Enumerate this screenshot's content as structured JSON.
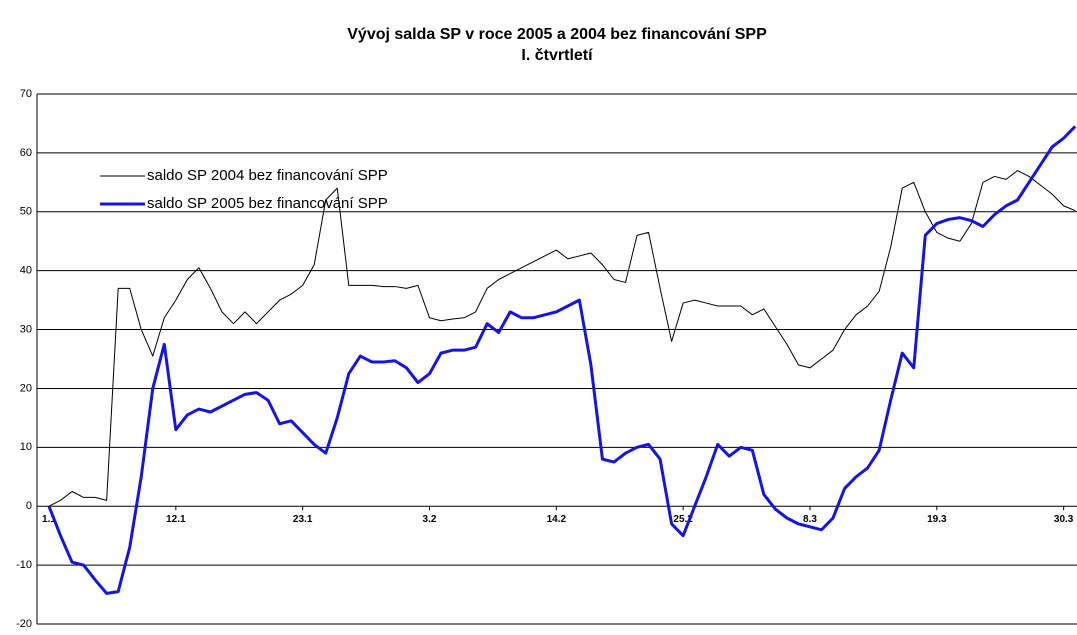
{
  "chart_data": {
    "type": "line",
    "title": "Vývoj salda SP v roce 2005 a 2004 bez financování SPP",
    "subtitle": "I. čtvrtletí",
    "categories": [
      "1.1",
      null,
      null,
      null,
      null,
      null,
      null,
      null,
      null,
      null,
      null,
      "12.1",
      null,
      null,
      null,
      null,
      null,
      null,
      null,
      null,
      null,
      null,
      "23.1",
      null,
      null,
      null,
      null,
      null,
      null,
      null,
      null,
      null,
      null,
      "3.2",
      null,
      null,
      null,
      null,
      null,
      null,
      null,
      null,
      null,
      null,
      "14.2",
      null,
      null,
      null,
      null,
      null,
      null,
      null,
      null,
      null,
      null,
      "25.2",
      null,
      null,
      null,
      null,
      null,
      null,
      null,
      null,
      null,
      null,
      "8.3",
      null,
      null,
      null,
      null,
      null,
      null,
      null,
      null,
      null,
      null,
      "19.3",
      null,
      null,
      null,
      null,
      null,
      null,
      null,
      null,
      null,
      null,
      "30.3",
      null
    ],
    "series": [
      {
        "name": "saldo SP 2004 bez financování SPP",
        "color": "#000000",
        "linewidth": 1,
        "values": [
          0,
          1,
          2.5,
          1.5,
          1.5,
          1,
          37,
          37,
          30,
          25.5,
          32,
          35,
          38.5,
          40.5,
          37,
          33,
          31,
          33,
          31,
          33,
          35,
          36,
          37.5,
          41,
          52,
          54,
          37.5,
          37.5,
          37.5,
          37.3,
          37.3,
          37,
          37.5,
          32,
          31.5,
          31.8,
          32,
          33,
          37,
          38.5,
          39.5,
          40.5,
          41.5,
          42.5,
          43.5,
          42,
          42.5,
          43,
          41,
          38.5,
          38,
          46,
          46.5,
          37,
          28,
          34.5,
          35,
          34.5,
          34,
          34,
          34,
          32.5,
          33.5,
          30.5,
          27.5,
          24,
          23.5,
          25,
          26.5,
          30,
          32.5,
          34,
          36.5,
          44,
          54,
          55,
          50,
          46.5,
          45.5,
          45,
          48,
          55,
          56,
          55.5,
          57,
          56,
          54.5,
          53,
          51,
          50.2
        ]
      },
      {
        "name": "saldo SP 2005 bez financování SPP",
        "color": "#1414e6",
        "linewidth": 3,
        "values": [
          0,
          -5,
          -9.5,
          -10,
          -12.5,
          -14.8,
          -14.5,
          -7,
          5,
          20,
          27.5,
          13,
          15.5,
          16.5,
          16,
          17,
          18,
          19,
          19.3,
          18,
          14,
          14.5,
          12.5,
          10.5,
          9,
          15,
          22.5,
          25.5,
          24.5,
          24.5,
          24.7,
          23.5,
          21,
          22.5,
          26,
          26.5,
          26.5,
          27,
          31,
          29.5,
          33,
          32,
          32,
          32.5,
          33,
          34,
          35,
          24,
          8,
          7.5,
          9,
          10,
          10.5,
          8,
          -3,
          -5,
          0,
          5,
          10.5,
          8.5,
          10,
          9.5,
          2,
          -0.5,
          -2,
          -3,
          -3.5,
          -4,
          -2,
          3,
          5,
          6.5,
          9.5,
          18,
          26,
          23.5,
          46,
          48,
          48.7,
          49,
          48.5,
          47.5,
          49.5,
          51,
          52,
          55,
          58,
          61,
          62.5,
          64.5
        ]
      }
    ],
    "ylim": [
      -20,
      70
    ],
    "yticks": [
      -20,
      -10,
      0,
      10,
      20,
      30,
      40,
      50,
      60,
      70
    ],
    "grid": true,
    "legend": "top-left"
  }
}
